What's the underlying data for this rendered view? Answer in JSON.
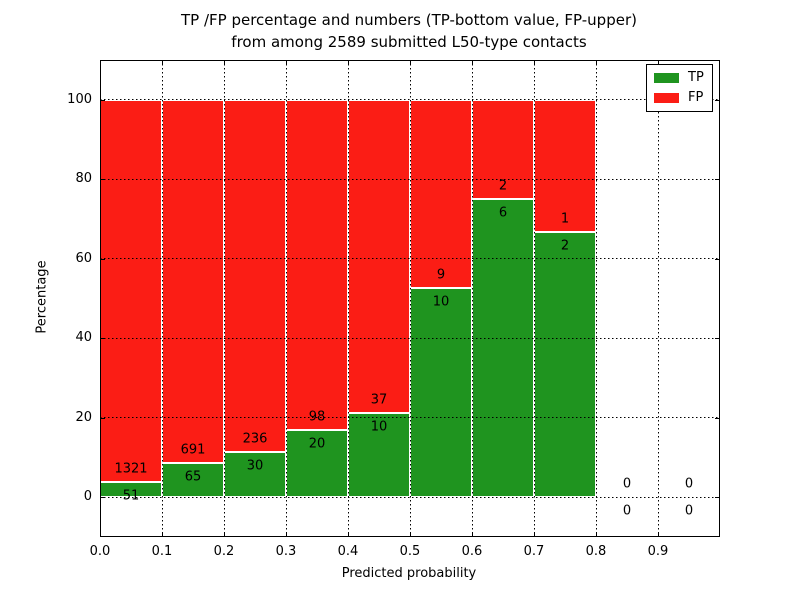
{
  "chart_data": {
    "type": "bar",
    "stacked": true,
    "title_line1": "TP /FP percentage and numbers (TP-bottom value, FP-upper)",
    "title_line2": "from among 2589 submitted L50-type contacts",
    "xlabel": "Predicted probability",
    "ylabel": "Percentage",
    "total_contacts": 2589,
    "x_tick_labels": [
      "0.0",
      "0.1",
      "0.2",
      "0.3",
      "0.4",
      "0.5",
      "0.6",
      "0.7",
      "0.8",
      "0.9"
    ],
    "y_tick_values": [
      0,
      20,
      40,
      60,
      80,
      100
    ],
    "y_tick_labels": [
      "0",
      "20",
      "40",
      "60",
      "80",
      "100"
    ],
    "xlim": [
      0.0,
      1.0
    ],
    "ylim": [
      -10,
      110
    ],
    "bin_width": 0.1,
    "grid": true,
    "note": "Each bin stacks TP% (green, bottom) and FP% (red, top) summing to 100%; numeric labels show raw counts (FP above boundary, TP below)",
    "bins": [
      {
        "x0": 0.0,
        "tp": 51,
        "fp": 1321
      },
      {
        "x0": 0.1,
        "tp": 65,
        "fp": 691
      },
      {
        "x0": 0.2,
        "tp": 30,
        "fp": 236
      },
      {
        "x0": 0.3,
        "tp": 20,
        "fp": 98
      },
      {
        "x0": 0.4,
        "tp": 10,
        "fp": 37
      },
      {
        "x0": 0.5,
        "tp": 10,
        "fp": 9
      },
      {
        "x0": 0.6,
        "tp": 6,
        "fp": 2
      },
      {
        "x0": 0.7,
        "tp": 2,
        "fp": 1
      },
      {
        "x0": 0.8,
        "tp": 0,
        "fp": 0
      },
      {
        "x0": 0.9,
        "tp": 0,
        "fp": 0
      }
    ],
    "legend": {
      "position": "upper right",
      "entries": [
        {
          "label": "TP",
          "color": "#1f941f"
        },
        {
          "label": "FP",
          "color": "#fb1d15"
        }
      ]
    },
    "colors": {
      "tp": "#1f941f",
      "fp": "#fb1d15",
      "grid": "#000000",
      "background": "#ffffff",
      "bar_edge": "#ffffff"
    }
  }
}
